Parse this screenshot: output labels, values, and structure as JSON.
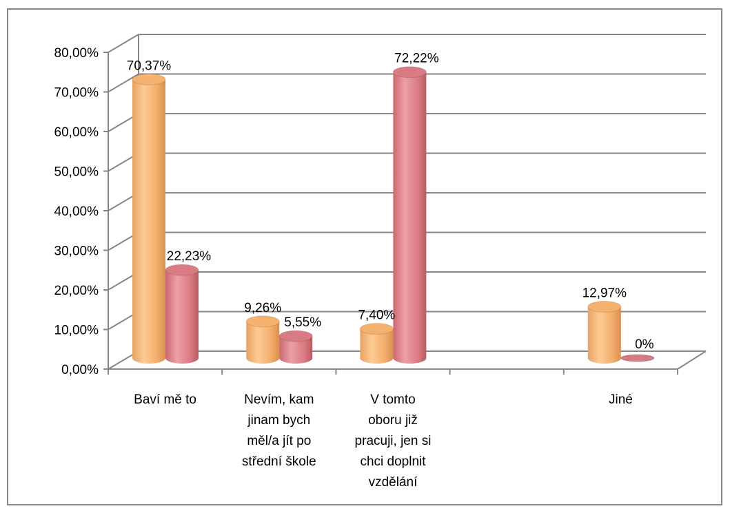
{
  "chart_data": {
    "type": "bar",
    "style": "3d-cylinder",
    "categories": [
      [
        "Baví mě to"
      ],
      [
        "Nevím, kam",
        "jinam bych",
        "měl/a jít po",
        "střední škole"
      ],
      [
        "V tomto",
        "oboru již",
        "pracuji, jen si",
        "chci doplnit",
        "vzdělání"
      ],
      [
        ""
      ],
      [
        "Jiné"
      ]
    ],
    "series": [
      {
        "color": "#F5B26E",
        "values": [
          70.37,
          9.26,
          7.4,
          null,
          12.97
        ],
        "labels": [
          "70,37%",
          "9,26%",
          "7,40%",
          "",
          "12,97%"
        ]
      },
      {
        "color": "#D97B82",
        "values": [
          22.23,
          5.55,
          72.22,
          null,
          0
        ],
        "labels": [
          "22,23%",
          "5,55%",
          "72,22%",
          "",
          "0%"
        ]
      }
    ],
    "ylim": [
      0,
      80
    ],
    "yticks": [
      {
        "value": 0,
        "label": "0,00%"
      },
      {
        "value": 10,
        "label": "10,00%"
      },
      {
        "value": 20,
        "label": "20,00%"
      },
      {
        "value": 30,
        "label": "30,00%"
      },
      {
        "value": 40,
        "label": "40,00%"
      },
      {
        "value": 50,
        "label": "50,00%"
      },
      {
        "value": 60,
        "label": "60,00%"
      },
      {
        "value": 70,
        "label": "70,00%"
      },
      {
        "value": 80,
        "label": "80,00%"
      }
    ],
    "grid": true,
    "legend": "none",
    "title": "",
    "xlabel": "",
    "ylabel": ""
  }
}
